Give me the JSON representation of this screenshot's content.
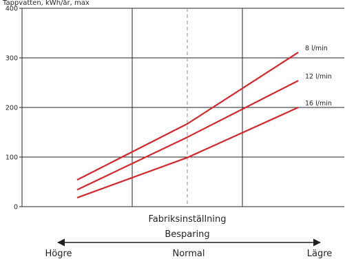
{
  "chart_data": {
    "type": "line",
    "title": "",
    "top_label": "Tappvatten, kWh/år, max",
    "ylim": [
      0,
      400
    ],
    "yticks": [
      "0",
      "100",
      "200",
      "300",
      "400"
    ],
    "x": [
      0,
      1,
      2
    ],
    "x_setting_labels": [
      "Högre",
      "Normal",
      "Lägre"
    ],
    "x_axis_title": "Besparing",
    "default_setting_label": "Fabriksinställning",
    "grid": true,
    "legend": "inline-right",
    "series": [
      {
        "name": "8 l/min",
        "color": "#d7252b",
        "values": [
          54,
          167,
          311
        ]
      },
      {
        "name": "12 l/min",
        "color": "#d7252b",
        "values": [
          34,
          140,
          254
        ]
      },
      {
        "name": "16 l/min",
        "color": "#d7252b",
        "values": [
          18,
          99,
          200
        ]
      }
    ]
  }
}
